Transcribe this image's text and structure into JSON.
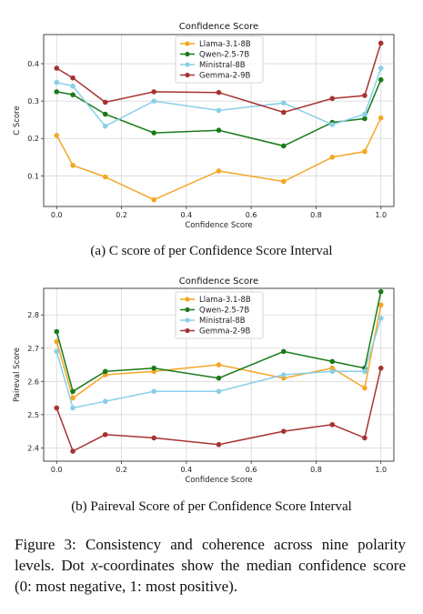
{
  "chart_data": [
    {
      "type": "line",
      "title": "Confidence Score",
      "xlabel": "Confidence Score",
      "ylabel": "C Score",
      "xlim": [
        -0.04,
        1.04
      ],
      "ylim": [
        0.018,
        0.478
      ],
      "xticks": [
        "0.0",
        "0.2",
        "0.4",
        "0.6",
        "0.8",
        "1.0"
      ],
      "yticks": [
        "0.1",
        "0.2",
        "0.3",
        "0.4"
      ],
      "x": [
        0.0,
        0.05,
        0.15,
        0.3,
        0.5,
        0.7,
        0.85,
        0.95,
        1.0
      ],
      "grid": true,
      "legend": "top-center",
      "series": [
        {
          "name": "Llama-3.1-8B",
          "color": "#f5a623",
          "values": [
            0.208,
            0.128,
            0.097,
            0.036,
            0.113,
            0.085,
            0.15,
            0.165,
            0.255
          ]
        },
        {
          "name": "Qwen-2.5-7B",
          "color": "#1a7a1a",
          "values": [
            0.325,
            0.317,
            0.265,
            0.215,
            0.222,
            0.18,
            0.243,
            0.253,
            0.357
          ]
        },
        {
          "name": "Ministral-8B",
          "color": "#89cfe8",
          "values": [
            0.35,
            0.34,
            0.233,
            0.3,
            0.275,
            0.295,
            0.237,
            0.265,
            0.388
          ]
        },
        {
          "name": "Gemma-2-9B",
          "color": "#a83232",
          "values": [
            0.388,
            0.362,
            0.297,
            0.325,
            0.323,
            0.27,
            0.307,
            0.315,
            0.455
          ]
        }
      ]
    },
    {
      "type": "line",
      "title": "Confidence Score",
      "xlabel": "Confidence Score",
      "ylabel": "Paireval Score",
      "xlim": [
        -0.04,
        1.04
      ],
      "ylim": [
        2.36,
        2.88
      ],
      "xticks": [
        "0.0",
        "0.2",
        "0.4",
        "0.6",
        "0.8",
        "1.0"
      ],
      "yticks": [
        "2.4",
        "2.5",
        "2.6",
        "2.7",
        "2.8"
      ],
      "x": [
        0.0,
        0.05,
        0.15,
        0.3,
        0.5,
        0.7,
        0.85,
        0.95,
        1.0
      ],
      "grid": true,
      "legend": "top-center",
      "series": [
        {
          "name": "Llama-3.1-8B",
          "color": "#f5a623",
          "values": [
            2.72,
            2.55,
            2.62,
            2.63,
            2.65,
            2.61,
            2.64,
            2.58,
            2.83
          ]
        },
        {
          "name": "Qwen-2.5-7B",
          "color": "#1a7a1a",
          "values": [
            2.75,
            2.57,
            2.63,
            2.64,
            2.61,
            2.69,
            2.66,
            2.64,
            2.87
          ]
        },
        {
          "name": "Ministral-8B",
          "color": "#89cfe8",
          "values": [
            2.69,
            2.52,
            2.54,
            2.57,
            2.57,
            2.62,
            2.63,
            2.63,
            2.79
          ]
        },
        {
          "name": "Gemma-2-9B",
          "color": "#a83232",
          "values": [
            2.52,
            2.39,
            2.44,
            2.43,
            2.41,
            2.45,
            2.47,
            2.43,
            2.64
          ]
        }
      ]
    }
  ],
  "captions": {
    "sub_a": "(a) C score of per Confidence Score Interval",
    "sub_b": "(b) Paireval Score of per Confidence Score Interval",
    "figure_label": "Figure 3:",
    "figure_text_1": "Consistency and coherence across nine polarity levels. Dot ",
    "figure_var": "x",
    "figure_text_2": "-coordinates show the median confidence score (0: most negative, 1: most positive)."
  }
}
